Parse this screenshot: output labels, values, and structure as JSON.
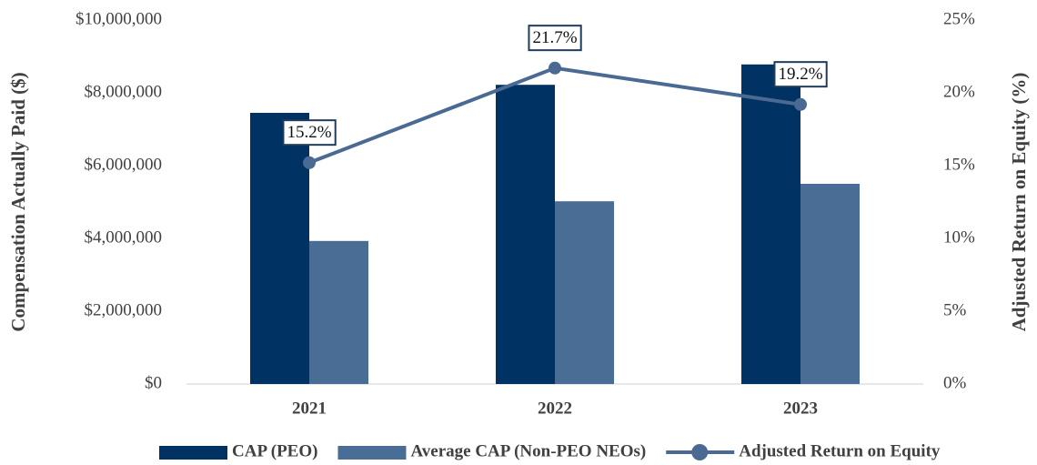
{
  "chart_data": {
    "type": "bar_line",
    "categories": [
      "2021",
      "2022",
      "2023"
    ],
    "series": [
      {
        "name": "CAP (PEO)",
        "color": "#003263",
        "type": "bar",
        "values": [
          7450000,
          8220000,
          8780000
        ]
      },
      {
        "name": "Average CAP (Non-PEO NEOs)",
        "color": "#4a6d96",
        "type": "bar",
        "values": [
          3930000,
          5020000,
          5500000
        ]
      },
      {
        "name": "Adjusted Return on Equity",
        "color": "#4a6a94",
        "type": "line",
        "axis": "y2",
        "values": [
          15.2,
          21.7,
          19.2
        ],
        "value_labels": [
          "15.2%",
          "21.7%",
          "19.2%"
        ]
      }
    ],
    "y_label": "Compensation Actually Paid ($)",
    "y2_label": "Adjusted Return on Equity (%)",
    "ylim": [
      0,
      10000000
    ],
    "yticks": [
      {
        "value": 0,
        "label": "$0"
      },
      {
        "value": 2000000,
        "label": "$2,000,000"
      },
      {
        "value": 4000000,
        "label": "$4,000,000"
      },
      {
        "value": 6000000,
        "label": "$6,000,000"
      },
      {
        "value": 8000000,
        "label": "$8,000,000"
      },
      {
        "value": 10000000,
        "label": "$10,000,000"
      }
    ],
    "y2lim": [
      0,
      25
    ],
    "y2ticks": [
      {
        "value": 0,
        "label": "0%"
      },
      {
        "value": 5,
        "label": "5%"
      },
      {
        "value": 10,
        "label": "10%"
      },
      {
        "value": 15,
        "label": "15%"
      },
      {
        "value": 20,
        "label": "20%"
      },
      {
        "value": 25,
        "label": "25%"
      }
    ],
    "grid": false,
    "legend": "bottom"
  }
}
